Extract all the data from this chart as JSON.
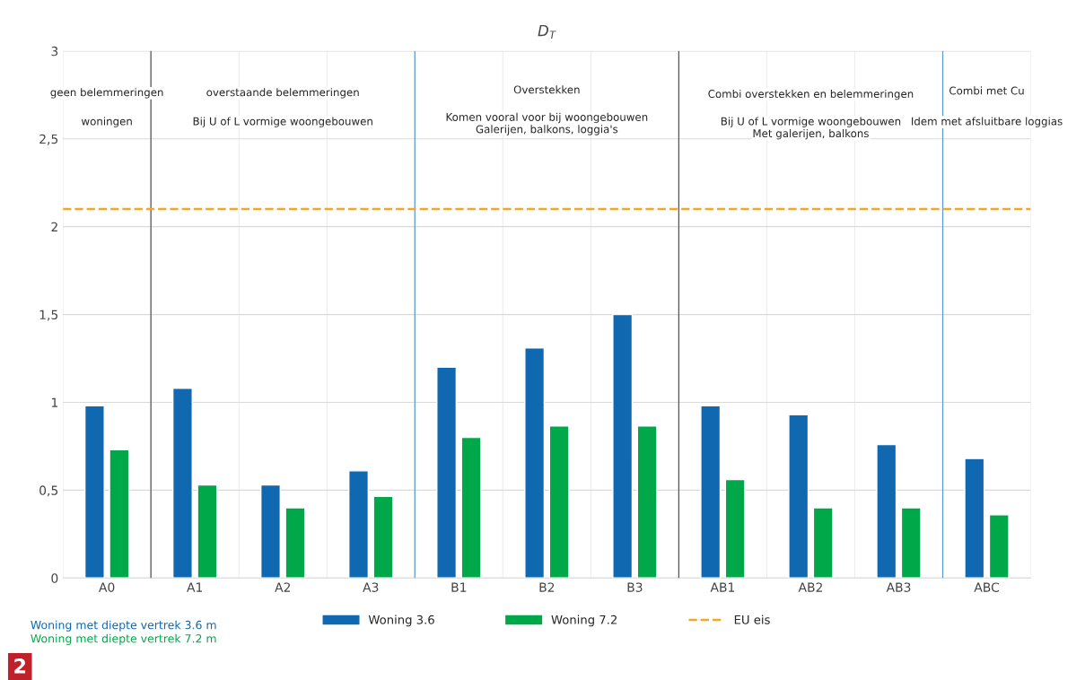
{
  "chart_data": {
    "type": "bar",
    "title": "D$_{T}$",
    "categories": [
      "A0",
      "A1",
      "A2",
      "A3",
      "B1",
      "B2",
      "B3",
      "AB1",
      "AB2",
      "AB3",
      "ABC"
    ],
    "series": [
      {
        "name": "Woning 3.6",
        "color": "#0f68b0",
        "values": [
          0.98,
          1.08,
          0.53,
          0.61,
          1.2,
          1.31,
          1.5,
          0.98,
          0.93,
          0.76,
          0.68
        ]
      },
      {
        "name": "Woning 7.2",
        "color": "#00a84a",
        "values": [
          0.73,
          0.53,
          0.4,
          0.465,
          0.8,
          0.865,
          0.865,
          0.56,
          0.4,
          0.4,
          0.36
        ]
      }
    ],
    "ylim": [
      0,
      3
    ],
    "yticks": [
      {
        "value": 0,
        "label": "0"
      },
      {
        "value": 0.5,
        "label": "0,5"
      },
      {
        "value": 1,
        "label": "1"
      },
      {
        "value": 1.5,
        "label": "1,5"
      },
      {
        "value": 2,
        "label": "2"
      },
      {
        "value": 2.5,
        "label": "2,5"
      },
      {
        "value": 3,
        "label": "3"
      }
    ],
    "ref_lines": [
      {
        "axis": "y",
        "value": 2.1,
        "label": "EU eis",
        "color": "#f5a623",
        "line_style": "dashed"
      }
    ],
    "annotations": [
      "geen belemmeringen",
      "woningen",
      "overstaande belemmeringen",
      "Bij U of L vormige woongebouwen",
      "Overstekken",
      "Komen vooral voor bij woongebouwen",
      "Galerijen, balkons, loggia's",
      "Combi overstekken en belemmeringen",
      "Bij U of L vormige woongebouwen",
      "Met galerijen, balkons",
      "Combi met Cu",
      "Idem met afsluitbare loggias",
      "Woning met diepte vertrek 3.6 m",
      "Woning met diepte vertrek 7.2 m",
      "2"
    ],
    "grid": true,
    "legend": "bottom"
  }
}
